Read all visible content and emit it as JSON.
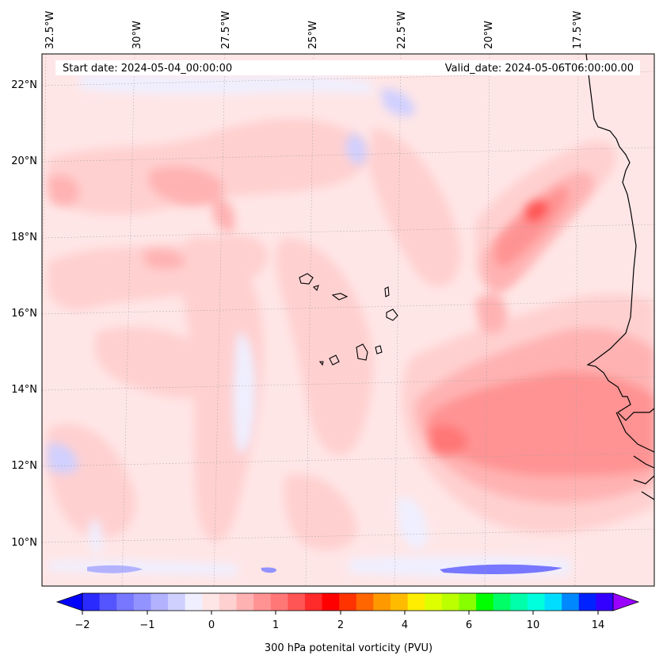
{
  "map": {
    "start_date_label": "Start date: 2024-05-04_00:00:00",
    "valid_date_label": "Valid_date: 2024-05-06T06:00:00.00",
    "lon_labels": [
      "32.5°W",
      "30°W",
      "27.5°W",
      "25°W",
      "22.5°W",
      "20°W",
      "17.5°W"
    ],
    "lat_labels": [
      "22°N",
      "20°N",
      "18°N",
      "16°N",
      "14°N",
      "12°N",
      "10°N"
    ]
  },
  "colorbar": {
    "label": "300 hPa potenital vorticity (PVU)",
    "ticks": [
      "−2",
      "−1",
      "0",
      "1",
      "2",
      "4",
      "6",
      "10",
      "14"
    ],
    "colors": [
      "#0000ff",
      "#2a2aff",
      "#5555ff",
      "#7777ff",
      "#9393ff",
      "#b2b2ff",
      "#d0d0ff",
      "#efefff",
      "#ffe6e6",
      "#ffd0d0",
      "#ffb2b2",
      "#ff9393",
      "#ff7777",
      "#ff5555",
      "#ff2a2a",
      "#ff0000",
      "#ff3300",
      "#ff6600",
      "#ff9900",
      "#ffbb00",
      "#ffee00",
      "#ddff00",
      "#bbff00",
      "#88ff00",
      "#00ff00",
      "#00ff66",
      "#00ffaa",
      "#00ffdd",
      "#00ddff",
      "#0088ff",
      "#0022ff",
      "#3300ff",
      "#9900ff"
    ]
  }
}
